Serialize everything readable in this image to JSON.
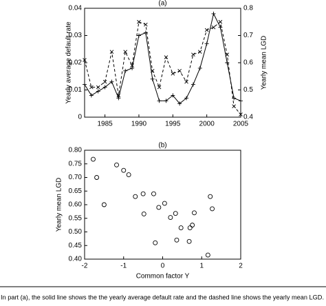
{
  "chart_data": [
    {
      "type": "line",
      "title": "(a)",
      "ylabel": "Yearly average default rate",
      "y2label": "Yearly mean LGD",
      "x": [
        1982,
        1983,
        1984,
        1985,
        1986,
        1987,
        1988,
        1989,
        1990,
        1991,
        1992,
        1993,
        1994,
        1995,
        1996,
        1997,
        1998,
        1999,
        2000,
        2001,
        2002,
        2003,
        2004,
        2005
      ],
      "xlim": [
        1982,
        2005
      ],
      "xticks": [
        1985,
        1990,
        1995,
        2000,
        2005
      ],
      "ylim": [
        0,
        0.04
      ],
      "yticks": [
        0,
        0.01,
        0.02,
        0.03,
        0.04
      ],
      "y2lim": [
        0.4,
        0.8
      ],
      "y2ticks": [
        0.4,
        0.5,
        0.6,
        0.7,
        0.8
      ],
      "series": [
        {
          "color": "#000000",
          "line_style": "solid",
          "marker": "+",
          "values": [
            0.012,
            0.008,
            0.0095,
            0.011,
            0.013,
            0.007,
            0.017,
            0.018,
            0.03,
            0.031,
            0.014,
            0.006,
            0.006,
            0.008,
            0.005,
            0.007,
            0.012,
            0.018,
            0.027,
            0.038,
            0.033,
            0.02,
            0.007,
            0.006
          ]
        },
        {
          "color": "#000000",
          "line_style": "dashed",
          "marker": "x",
          "axis": "y2",
          "values": [
            0.61,
            0.51,
            0.51,
            0.53,
            0.64,
            0.48,
            0.64,
            0.59,
            0.75,
            0.74,
            0.57,
            0.51,
            0.62,
            0.56,
            0.57,
            0.53,
            0.63,
            0.64,
            0.72,
            0.73,
            0.75,
            0.63,
            0.44,
            0.41
          ]
        }
      ]
    },
    {
      "type": "scatter",
      "title": "(b)",
      "xlabel": "Common factor Y",
      "ylabel": "Yearly mean LGD",
      "xlim": [
        -2,
        2
      ],
      "xticks": [
        -2,
        -1,
        0,
        1,
        2
      ],
      "ylim": [
        0.4,
        0.8
      ],
      "yticks": [
        {
          "value": 0.4,
          "label": "0.40"
        },
        {
          "value": 0.45,
          "label": "0.45"
        },
        {
          "value": 0.5,
          "label": "0.50"
        },
        {
          "value": 0.55,
          "label": "0.55"
        },
        {
          "value": 0.6,
          "label": "0.60"
        },
        {
          "value": 0.65,
          "label": "0.65"
        },
        {
          "value": 0.7,
          "label": "0.70"
        },
        {
          "value": 0.75,
          "label": "0.75"
        },
        {
          "value": 0.8,
          "label": "0.80"
        }
      ],
      "color": "#000000",
      "marker": "o",
      "x": [
        -1.78,
        -1.69,
        -1.5,
        -1.18,
        -1.0,
        -0.87,
        -0.7,
        -0.5,
        -0.48,
        -0.23,
        -0.19,
        -0.1,
        0.05,
        0.2,
        0.33,
        0.47,
        0.36,
        0.7,
        0.76,
        0.81,
        0.68,
        1.22,
        1.27,
        1.16
      ],
      "values": [
        0.767,
        0.7,
        0.6,
        0.746,
        0.726,
        0.71,
        0.63,
        0.64,
        0.566,
        0.64,
        0.46,
        0.59,
        0.605,
        0.553,
        0.568,
        0.515,
        0.47,
        0.515,
        0.525,
        0.57,
        0.465,
        0.63,
        0.585,
        0.415
      ]
    }
  ],
  "caption": "In part (a), the solid line shows the the yearly average default rate and the dashed line shows the yearly mean LGD."
}
